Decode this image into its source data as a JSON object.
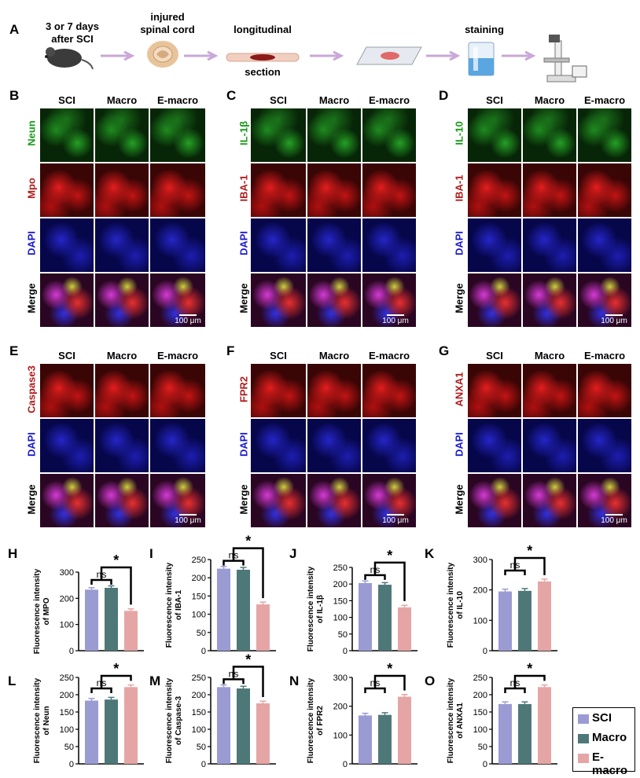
{
  "panel_a": {
    "label": "A",
    "step1": [
      "3 or 7 days",
      "after SCI"
    ],
    "step2": [
      "injured",
      "spinal cord"
    ],
    "step3": [
      "longitudinal",
      "section"
    ],
    "step4": "staining"
  },
  "panel_labels": [
    "B",
    "C",
    "D",
    "E",
    "F",
    "G",
    "H",
    "I",
    "J",
    "K",
    "L",
    "M",
    "N",
    "O"
  ],
  "image_columns": [
    "SCI",
    "Macro",
    "E-macro"
  ],
  "scale_bar": "100 μm",
  "row_labels": {
    "B": [
      "Neun",
      "Mpo",
      "DAPI",
      "Merge"
    ],
    "C": [
      "IL-1β",
      "IBA-1",
      "DAPI",
      "Merge"
    ],
    "D": [
      "IL-10",
      "IBA-1",
      "DAPI",
      "Merge"
    ],
    "E": [
      "Caspase3",
      "DAPI",
      "Merge"
    ],
    "F": [
      "FPR2",
      "DAPI",
      "Merge"
    ],
    "G": [
      "ANXA1",
      "DAPI",
      "Merge"
    ]
  },
  "colors": {
    "SCI": "#9b9bd3",
    "Macro": "#4e7878",
    "E-macro": "#e6a5a5",
    "green_label": "#1a9a1a",
    "red_label": "#b01c1c",
    "blue_label": "#1a1ad0"
  },
  "chart_data": [
    {
      "panel": "H",
      "type": "bar",
      "categories": [
        "SCI",
        "Macro",
        "E-macro"
      ],
      "values": [
        233,
        240,
        152
      ],
      "ylabel": "Fluorescence intensity of MPO",
      "yticks": [
        0,
        100,
        200,
        300
      ],
      "ylim": [
        0,
        300
      ],
      "sig": [
        {
          "label": "ns"
        },
        {
          "label": "*"
        }
      ]
    },
    {
      "panel": "I",
      "type": "bar",
      "categories": [
        "SCI",
        "Macro",
        "E-macro"
      ],
      "values": [
        225,
        222,
        127
      ],
      "ylabel": "Fluorescence intensity of IBA-1",
      "yticks": [
        0,
        50,
        100,
        150,
        200,
        250
      ],
      "ylim": [
        0,
        250
      ],
      "sig": [
        {
          "label": "ns"
        },
        {
          "label": "*"
        }
      ]
    },
    {
      "panel": "J",
      "type": "bar",
      "categories": [
        "SCI",
        "Macro",
        "E-macro"
      ],
      "values": [
        203,
        198,
        130
      ],
      "ylabel": "Fluorescence intensity of IL-1β",
      "yticks": [
        0,
        50,
        100,
        150,
        200,
        250
      ],
      "ylim": [
        0,
        250
      ],
      "sig": [
        {
          "label": "ns"
        },
        {
          "label": "*"
        }
      ]
    },
    {
      "panel": "K",
      "type": "bar",
      "categories": [
        "SCI",
        "Macro",
        "E-macro"
      ],
      "values": [
        195,
        197,
        228
      ],
      "ylabel": "Fluorescence intensity of IL-10",
      "yticks": [
        0,
        100,
        200,
        300
      ],
      "ylim": [
        0,
        300
      ],
      "sig": [
        {
          "label": "ns"
        },
        {
          "label": "*"
        }
      ]
    },
    {
      "panel": "L",
      "type": "bar",
      "categories": [
        "SCI",
        "Macro",
        "E-macro"
      ],
      "values": [
        183,
        186,
        222
      ],
      "ylabel": "Fluorescence intensity of  Neun",
      "yticks": [
        0,
        50,
        100,
        150,
        200,
        250
      ],
      "ylim": [
        0,
        250
      ],
      "sig": [
        {
          "label": "ns"
        },
        {
          "label": "*"
        }
      ]
    },
    {
      "panel": "M",
      "type": "bar",
      "categories": [
        "SCI",
        "Macro",
        "E-macro"
      ],
      "values": [
        222,
        218,
        175
      ],
      "ylabel": "Fluorescence intensity of  Caspase-3",
      "yticks": [
        0,
        50,
        100,
        150,
        200,
        250
      ],
      "ylim": [
        0,
        250
      ],
      "sig": [
        {
          "label": "ns"
        },
        {
          "label": "*"
        }
      ]
    },
    {
      "panel": "N",
      "type": "bar",
      "categories": [
        "SCI",
        "Macro",
        "E-macro"
      ],
      "values": [
        168,
        170,
        233
      ],
      "ylabel": "Fluorescence intensity of FPR2",
      "yticks": [
        0,
        100,
        200,
        300
      ],
      "ylim": [
        0,
        300
      ],
      "sig": [
        {
          "label": "ns"
        },
        {
          "label": "*"
        }
      ]
    },
    {
      "panel": "O",
      "type": "bar",
      "categories": [
        "SCI",
        "Macro",
        "E-macro"
      ],
      "values": [
        173,
        173,
        222
      ],
      "ylabel": "Fluorescence intensity of  ANXA1",
      "yticks": [
        0,
        50,
        100,
        150,
        200,
        250
      ],
      "ylim": [
        0,
        250
      ],
      "sig": [
        {
          "label": "ns"
        },
        {
          "label": "*"
        }
      ]
    }
  ],
  "legend": {
    "placement": "bottom-right",
    "items": [
      "SCI",
      "Macro",
      "E-macro"
    ]
  }
}
